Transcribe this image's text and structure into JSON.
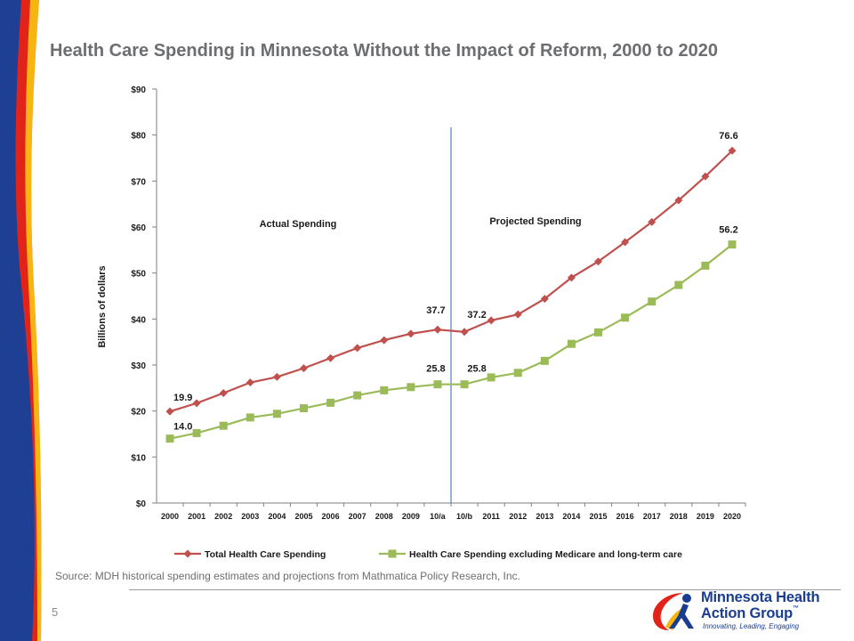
{
  "slide": {
    "title": "Health Care Spending in Minnesota Without the Impact of Reform, 2000 to 2020",
    "source": "Source: MDH historical spending estimates and projections from Mathmatica Policy Research, Inc.",
    "page_number": "5",
    "logo": {
      "line1": "Minnesota Health",
      "line2": "Action Group",
      "trademark": "™",
      "tagline": "Innovating, Leading, Engaging"
    },
    "colors": {
      "band_blue": "#1f3f95",
      "band_red": "#e2231a",
      "band_yellow": "#f7b512",
      "band_white": "#ffffff"
    }
  },
  "chart_data": {
    "type": "line",
    "title": "",
    "xlabel": "",
    "ylabel": "Billions of dollars",
    "categories": [
      "2000",
      "2001",
      "2002",
      "2003",
      "2004",
      "2005",
      "2006",
      "2007",
      "2008",
      "2009",
      "10/a",
      "10/b",
      "2011",
      "2012",
      "2013",
      "2014",
      "2015",
      "2016",
      "2017",
      "2018",
      "2019",
      "2020"
    ],
    "ylim": [
      0,
      90
    ],
    "yticks": [
      0,
      10,
      20,
      30,
      40,
      50,
      60,
      70,
      80,
      90
    ],
    "ytick_labels": [
      "$0",
      "$10",
      "$20",
      "$30",
      "$40",
      "$50",
      "$60",
      "$70",
      "$80",
      "$90"
    ],
    "grid": false,
    "legend_position": "bottom",
    "series": [
      {
        "name": "Total Health Care Spending",
        "color": "#c0504d",
        "marker": "diamond",
        "values": [
          19.9,
          21.7,
          23.9,
          26.2,
          27.4,
          29.3,
          31.5,
          33.7,
          35.4,
          36.8,
          37.7,
          37.2,
          39.7,
          41.0,
          44.4,
          49.0,
          52.5,
          56.7,
          61.1,
          65.8,
          71.0,
          76.6
        ]
      },
      {
        "name": "Health Care Spending excluding Medicare and long-term care",
        "color": "#9bbb59",
        "marker": "square",
        "values": [
          14.0,
          15.2,
          16.8,
          18.6,
          19.4,
          20.6,
          21.8,
          23.4,
          24.5,
          25.2,
          25.8,
          25.8,
          27.3,
          28.3,
          30.9,
          34.6,
          37.1,
          40.3,
          43.8,
          47.4,
          51.6,
          56.2
        ]
      }
    ],
    "annotations": {
      "divider_color": "#4f81bd",
      "region_labels": [
        {
          "text": "Actual Spending",
          "position": "left"
        },
        {
          "text": "Projected Spending",
          "position": "right"
        }
      ],
      "point_labels": [
        {
          "series": 0,
          "index": 0,
          "text": "19.9"
        },
        {
          "series": 0,
          "index": 10,
          "text": "37.7"
        },
        {
          "series": 0,
          "index": 11,
          "text": "37.2"
        },
        {
          "series": 0,
          "index": 21,
          "text": "76.6"
        },
        {
          "series": 1,
          "index": 0,
          "text": "14.0"
        },
        {
          "series": 1,
          "index": 10,
          "text": "25.8"
        },
        {
          "series": 1,
          "index": 11,
          "text": "25.8"
        },
        {
          "series": 1,
          "index": 21,
          "text": "56.2"
        }
      ]
    }
  }
}
